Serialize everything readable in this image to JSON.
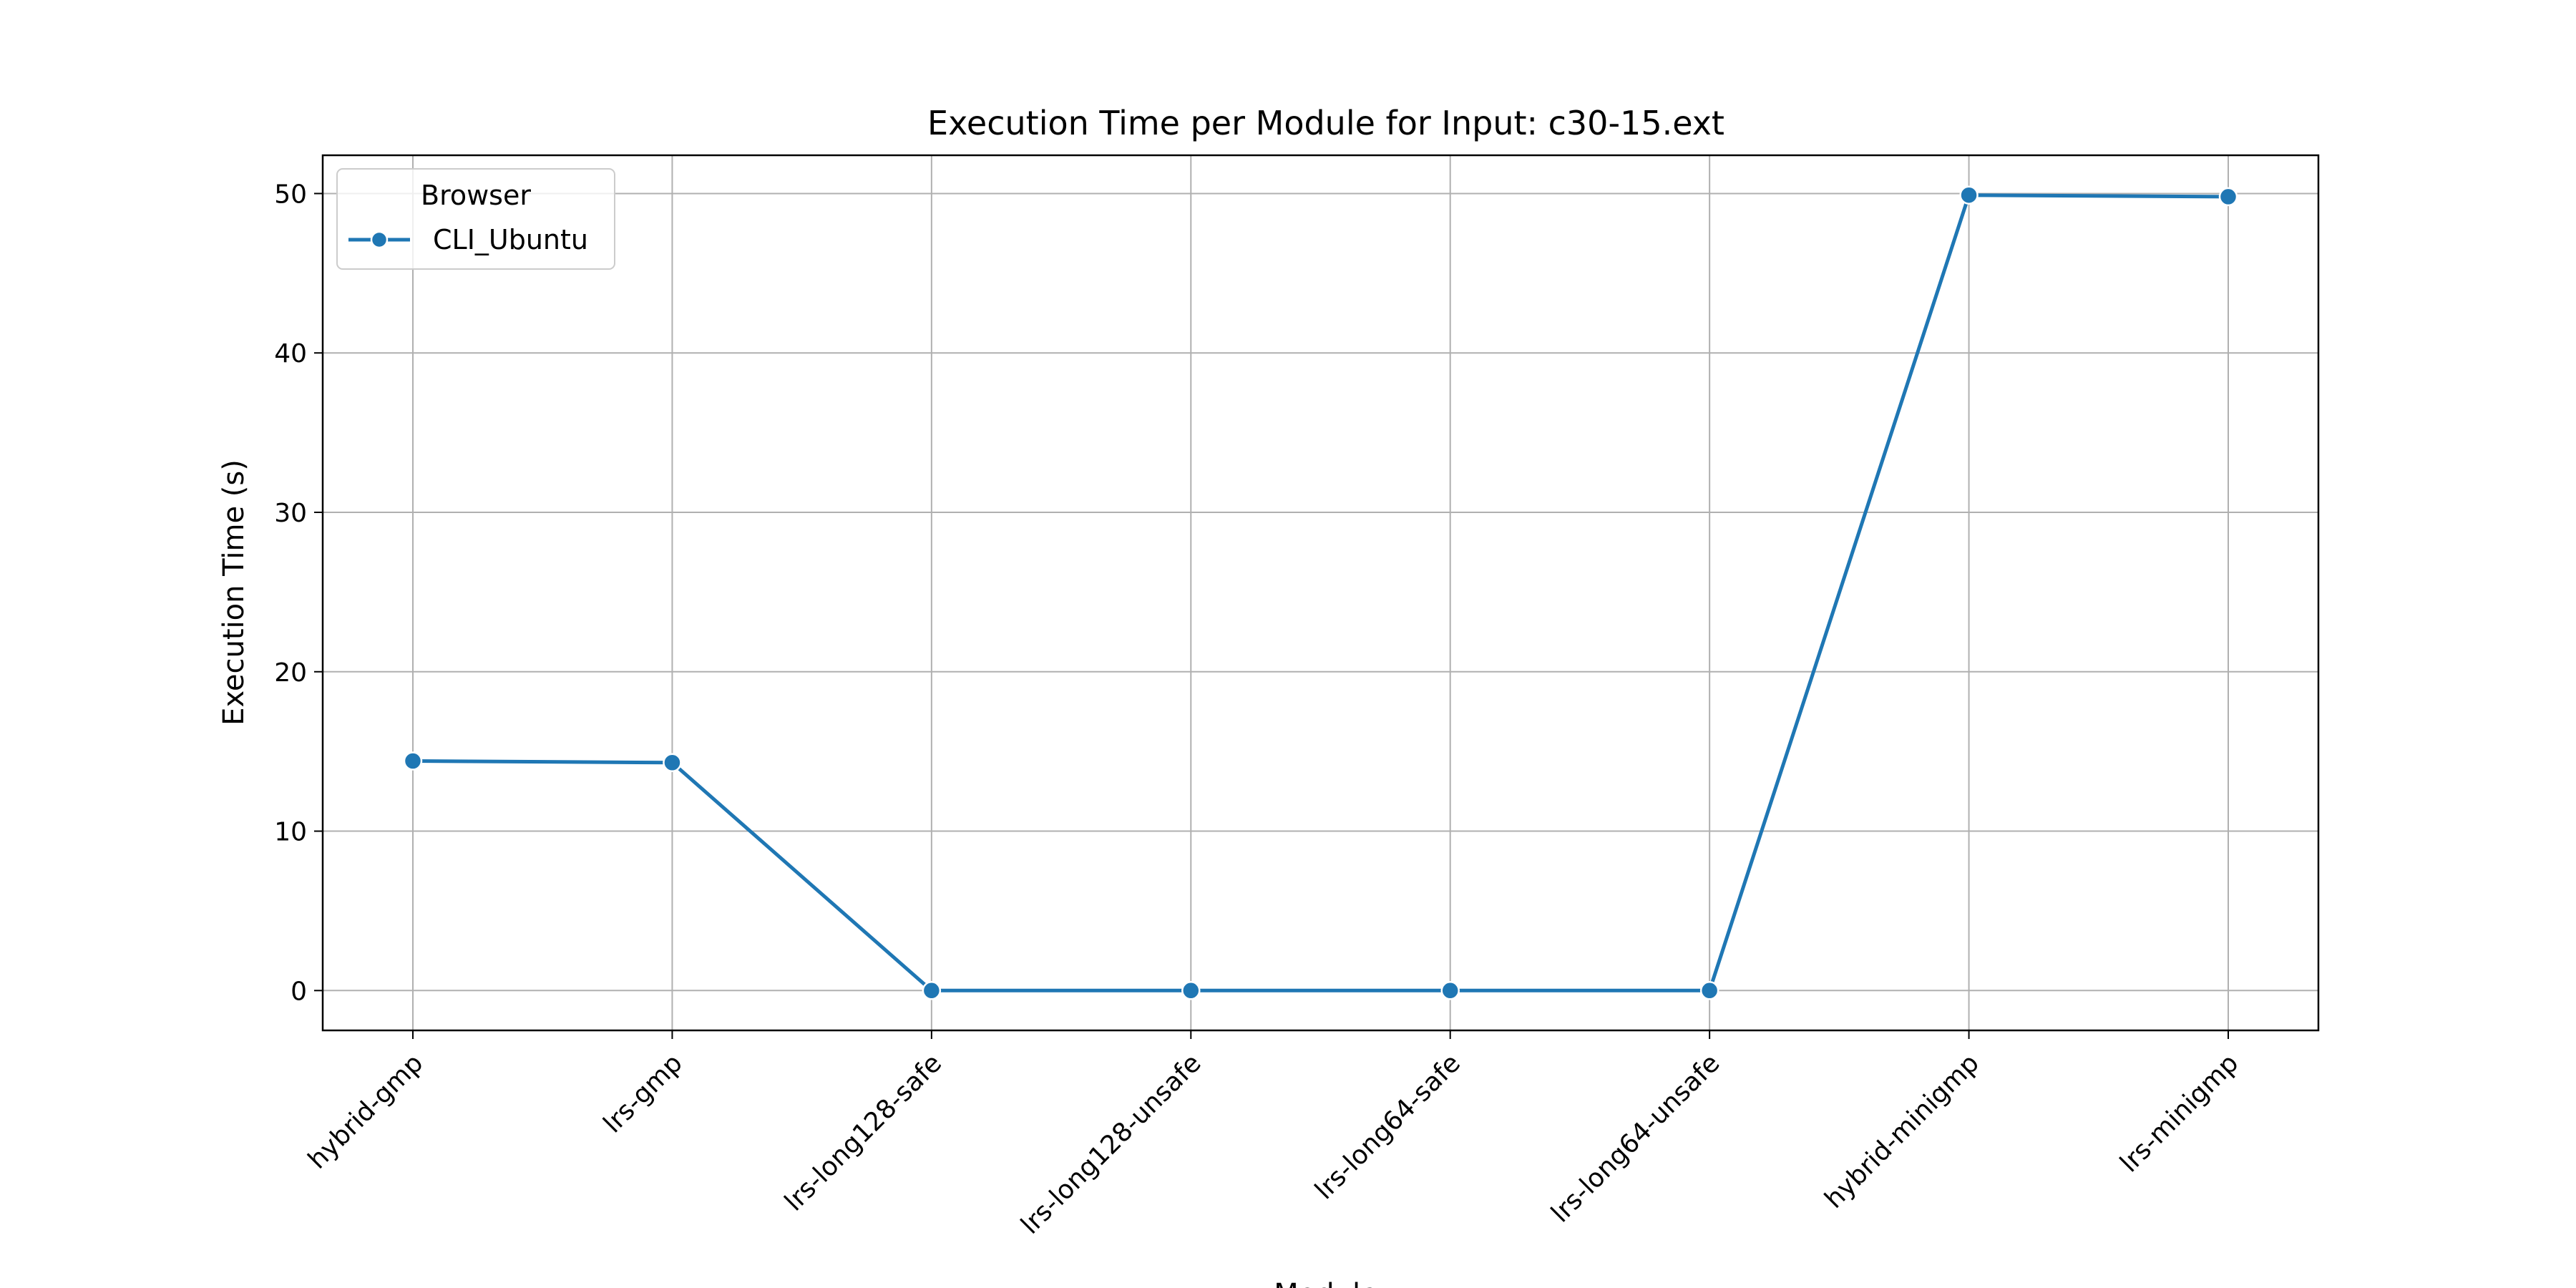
{
  "chart_data": {
    "type": "line",
    "title": "Execution Time per Module for Input: c30-15.ext",
    "xlabel": "Module",
    "ylabel": "Execution Time (s)",
    "categories": [
      "hybrid-gmp",
      "lrs-gmp",
      "lrs-long128-safe",
      "lrs-long128-unsafe",
      "lrs-long64-safe",
      "lrs-long64-unsafe",
      "hybrid-minigmp",
      "lrs-minigmp"
    ],
    "series": [
      {
        "name": "CLI_Ubuntu",
        "values": [
          14.4,
          14.3,
          0.0,
          0.0,
          0.0,
          0.0,
          49.9,
          49.8
        ],
        "color": "#1f77b4"
      }
    ],
    "yticks": [
      0,
      10,
      20,
      30,
      40,
      50
    ],
    "ylim": [
      -2.5,
      52.4
    ],
    "grid": true,
    "legend": {
      "title": "Browser",
      "placement": "top-left"
    }
  }
}
